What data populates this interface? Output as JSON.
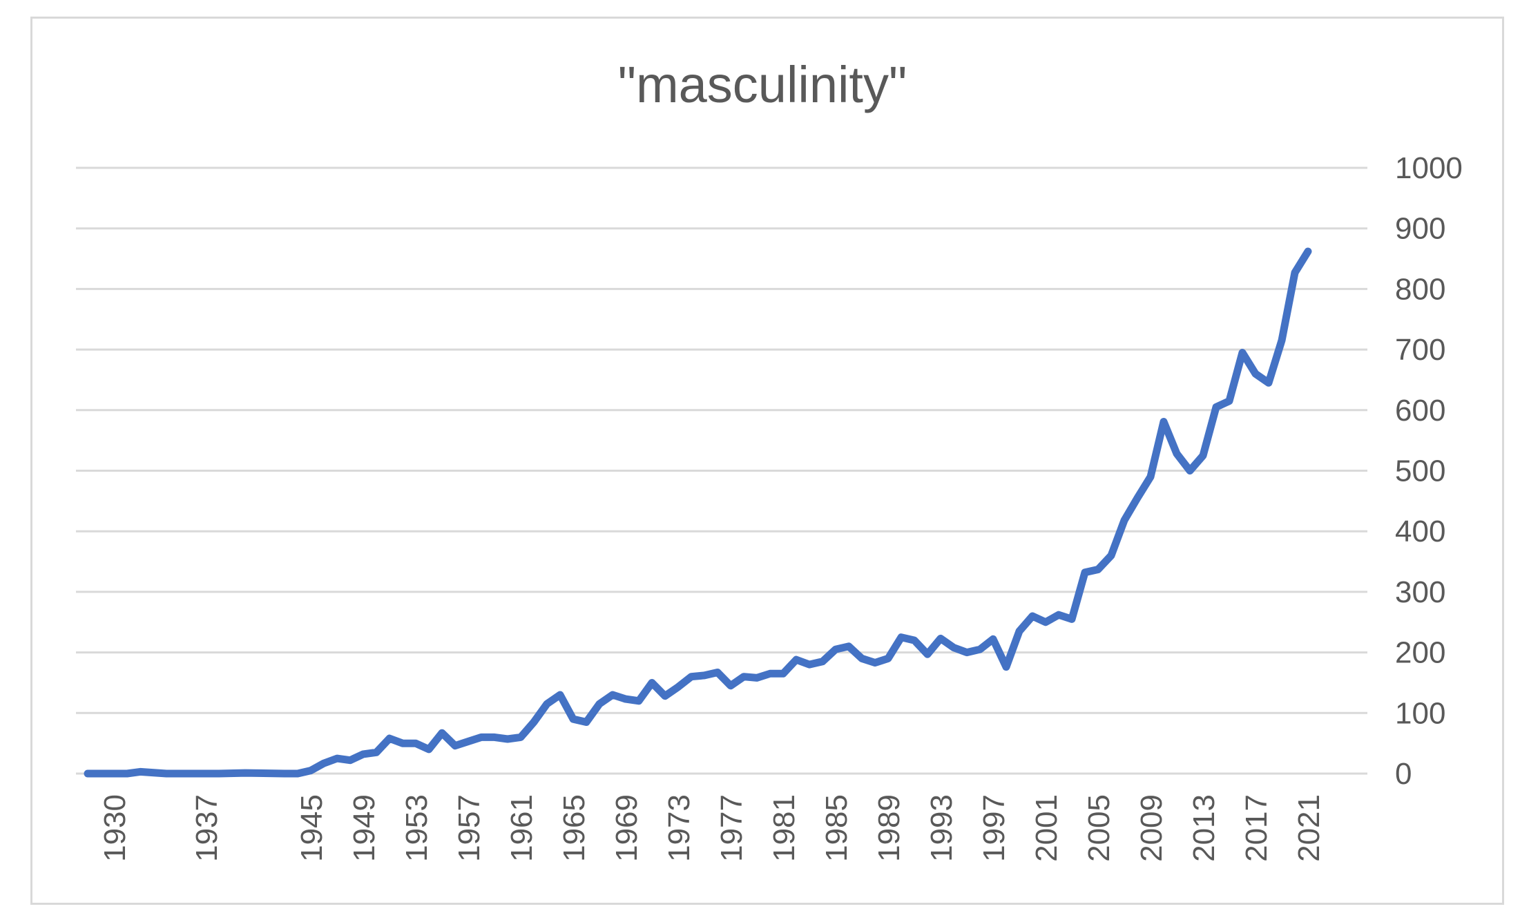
{
  "chart_data": {
    "type": "line",
    "title": "\"masculinity\"",
    "xlabel": "",
    "ylabel": "",
    "ylim": [
      0,
      1000
    ],
    "yticks": [
      0,
      100,
      200,
      300,
      400,
      500,
      600,
      700,
      800,
      900,
      1000
    ],
    "y_axis_position": "right",
    "grid": true,
    "legend": "none",
    "line_color": "#4472C4",
    "x_tick_labels": [
      "1930",
      "1937",
      "1945",
      "1949",
      "1953",
      "1957",
      "1961",
      "1965",
      "1969",
      "1973",
      "1977",
      "1981",
      "1985",
      "1989",
      "1993",
      "1997",
      "2001",
      "2005",
      "2009",
      "2013",
      "2017",
      "2021"
    ],
    "series": [
      {
        "x": [
          "1928",
          "1929",
          "1930",
          "1931",
          "1932",
          "1934",
          "1935",
          "1936",
          "1937",
          "1938",
          "1940",
          "1943",
          "1944",
          "1945",
          "1946",
          "1947",
          "1948",
          "1949",
          "1950",
          "1951",
          "1952",
          "1953",
          "1954",
          "1955",
          "1956",
          "1957",
          "1958",
          "1959",
          "1960",
          "1961",
          "1962",
          "1963",
          "1964",
          "1965",
          "1966",
          "1967",
          "1968",
          "1969",
          "1970",
          "1971",
          "1972",
          "1973",
          "1974",
          "1975",
          "1976",
          "1977",
          "1978",
          "1979",
          "1980",
          "1981",
          "1982",
          "1983",
          "1984",
          "1985",
          "1986",
          "1987",
          "1988",
          "1989",
          "1990",
          "1991",
          "1992",
          "1993",
          "1994",
          "1995",
          "1996",
          "1997",
          "1998",
          "1999",
          "2000",
          "2001",
          "2002",
          "2003",
          "2004",
          "2005",
          "2006",
          "2007",
          "2008",
          "2009",
          "2010",
          "2011",
          "2012",
          "2013",
          "2014",
          "2015",
          "2016",
          "2017",
          "2018",
          "2019",
          "2020",
          "2021"
        ],
        "values": [
          0,
          0,
          0,
          0,
          3,
          0,
          0,
          0,
          0,
          0,
          1,
          0,
          0,
          5,
          17,
          25,
          22,
          32,
          35,
          58,
          50,
          50,
          40,
          67,
          46,
          53,
          60,
          60,
          57,
          60,
          85,
          115,
          130,
          90,
          85,
          115,
          130,
          123,
          120,
          150,
          128,
          143,
          160,
          162,
          167,
          145,
          160,
          158,
          165,
          165,
          188,
          180,
          185,
          205,
          210,
          190,
          183,
          190,
          225,
          220,
          197,
          223,
          208,
          200,
          205,
          222,
          176,
          235,
          260,
          250,
          262,
          255,
          332,
          337,
          360,
          418,
          455,
          490,
          581,
          528,
          500,
          525,
          605,
          615,
          695,
          660,
          645,
          715,
          827,
          862
        ]
      }
    ]
  }
}
